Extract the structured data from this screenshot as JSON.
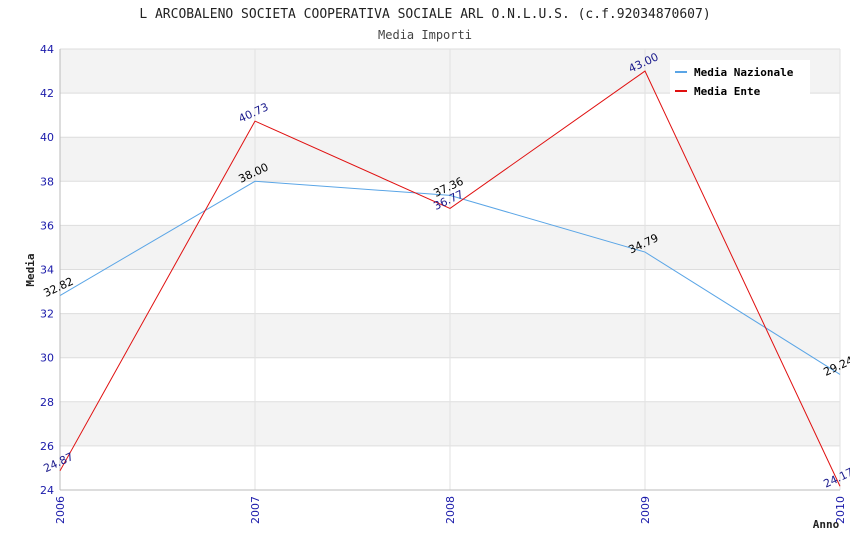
{
  "chart_data": {
    "type": "line",
    "title": "L ARCOBALENO SOCIETA COOPERATIVA SOCIALE ARL O.N.L.U.S. (c.f.92034870607)",
    "subtitle": "Media Importi",
    "xlabel": "Anno",
    "ylabel": "Media",
    "x": [
      "2006",
      "2007",
      "2008",
      "2009",
      "2010"
    ],
    "ylim": [
      24,
      44
    ],
    "yticks": [
      24,
      26,
      28,
      30,
      32,
      34,
      36,
      38,
      40,
      42,
      44
    ],
    "grid": true,
    "legend": "top-right",
    "series": [
      {
        "name": "Media Nazionale",
        "color": "#5aa5e6",
        "label_color": "#000000",
        "values": [
          32.82,
          38.0,
          37.36,
          34.79,
          29.24
        ],
        "labels": [
          "32.82",
          "38.00",
          "37.36",
          "34.79",
          "29.24"
        ]
      },
      {
        "name": "Media Ente",
        "color": "#e01010",
        "label_color": "#1a1a8c",
        "values": [
          24.87,
          40.73,
          36.77,
          43.0,
          24.17
        ],
        "labels": [
          "24.87",
          "40.73",
          "36.77",
          "43.00",
          "24.17"
        ]
      }
    ]
  }
}
